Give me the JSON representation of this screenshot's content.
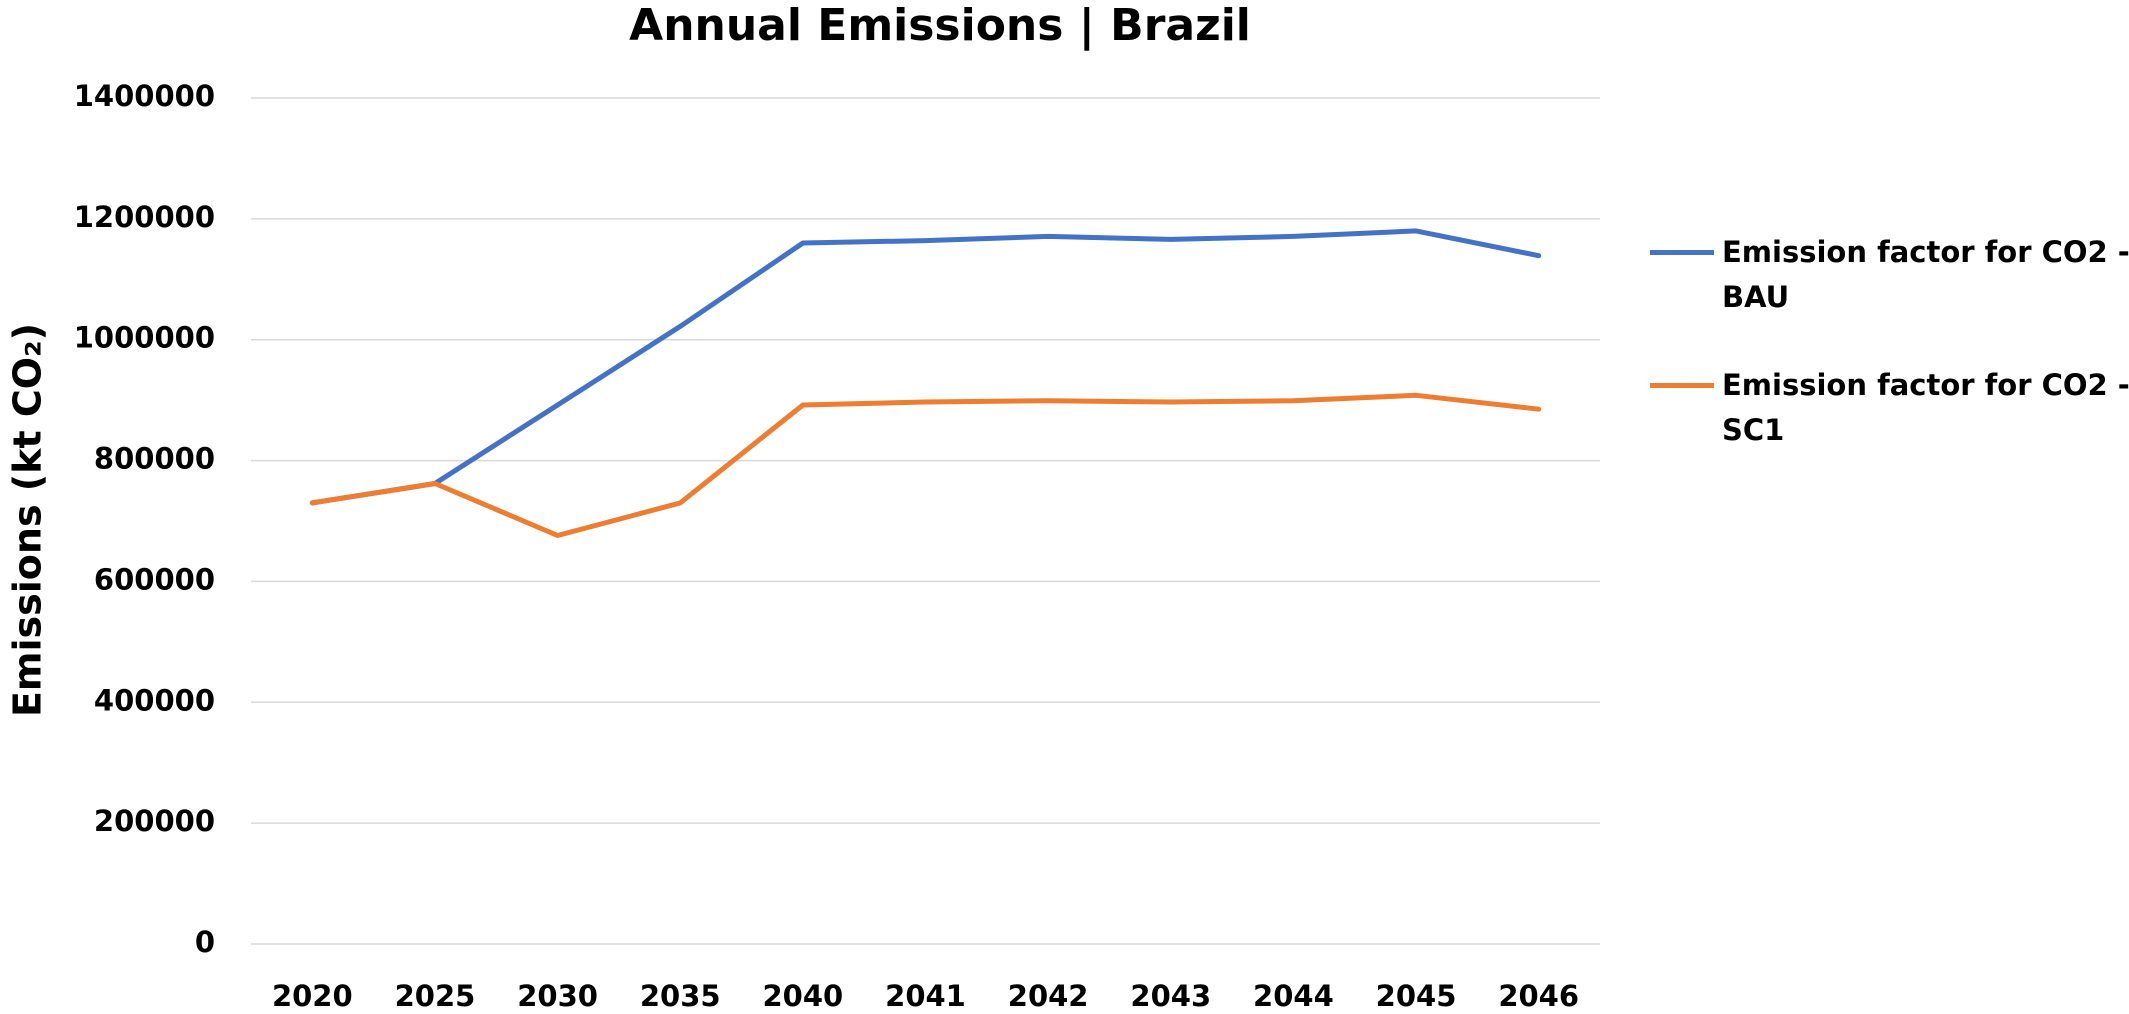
{
  "chart_data": {
    "type": "line",
    "title": "Annual Emissions | Brazil",
    "y_label": "Emissions (kt CO₂)",
    "categories": [
      "2020",
      "2025",
      "2030",
      "2035",
      "2040",
      "2041",
      "2042",
      "2043",
      "2044",
      "2045",
      "2046"
    ],
    "series": [
      {
        "name": "Emission factor for CO2 - BAU",
        "color": "#4472c4",
        "values": [
          730000,
          762000,
          892000,
          1022000,
          1160000,
          1164000,
          1171000,
          1166000,
          1171000,
          1180000,
          1139000
        ]
      },
      {
        "name": "Emission factor for CO2 - SC1",
        "color": "#ed7d31",
        "values": [
          730000,
          762000,
          676000,
          730000,
          892000,
          897000,
          899000,
          897000,
          899000,
          908000,
          885000
        ]
      }
    ],
    "ylim": [
      0,
      1400000
    ],
    "yticks": [
      0,
      200000,
      400000,
      600000,
      800000,
      1000000,
      1200000,
      1400000
    ],
    "grid": true,
    "legend": "right"
  }
}
